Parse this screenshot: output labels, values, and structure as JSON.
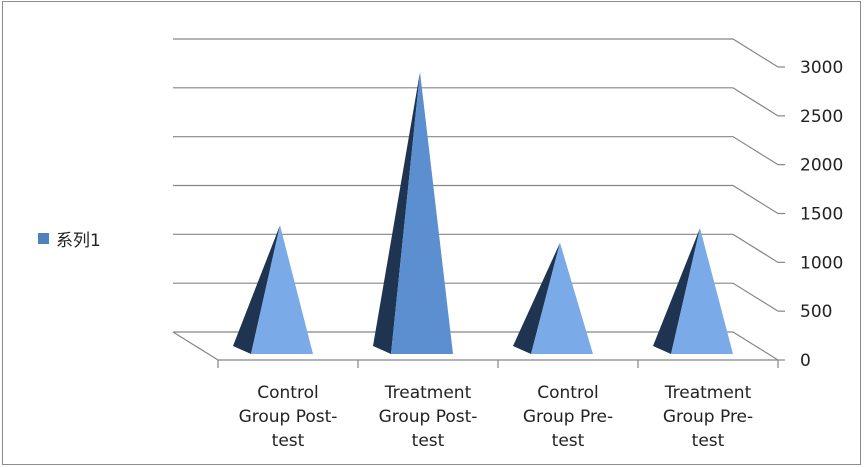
{
  "chart_data": {
    "type": "bar",
    "style": "3d-pyramid",
    "categories": [
      "Control Group Post-test",
      "Treatment Group Post-test",
      "Control Group Pre-test",
      "Treatment Group Pre-test"
    ],
    "category_label_lines": [
      [
        "Control",
        "Group Post-",
        "test"
      ],
      [
        "Treatment",
        "Group Post-",
        "test"
      ],
      [
        "Control",
        "Group Pre-",
        "test"
      ],
      [
        "Treatment",
        "Group Pre-",
        "test"
      ]
    ],
    "series": [
      {
        "name": "系列1",
        "values": [
          1380,
          2950,
          1200,
          1350
        ]
      }
    ],
    "ylim": [
      0,
      3000
    ],
    "yticks": [
      "0",
      "500",
      "1000",
      "1500",
      "2000",
      "2500",
      "3000"
    ],
    "ytick_values": [
      0,
      500,
      1000,
      1500,
      2000,
      2500,
      3000
    ],
    "y_axis_side": "right",
    "grid": true,
    "legend_position": "left",
    "colors": {
      "front_face": "#7aaae8",
      "front_face_tall": "#5b8fd0",
      "side_face": "#1f3450",
      "legend_swatch": "#4f81bd",
      "grid": "#868686"
    }
  }
}
